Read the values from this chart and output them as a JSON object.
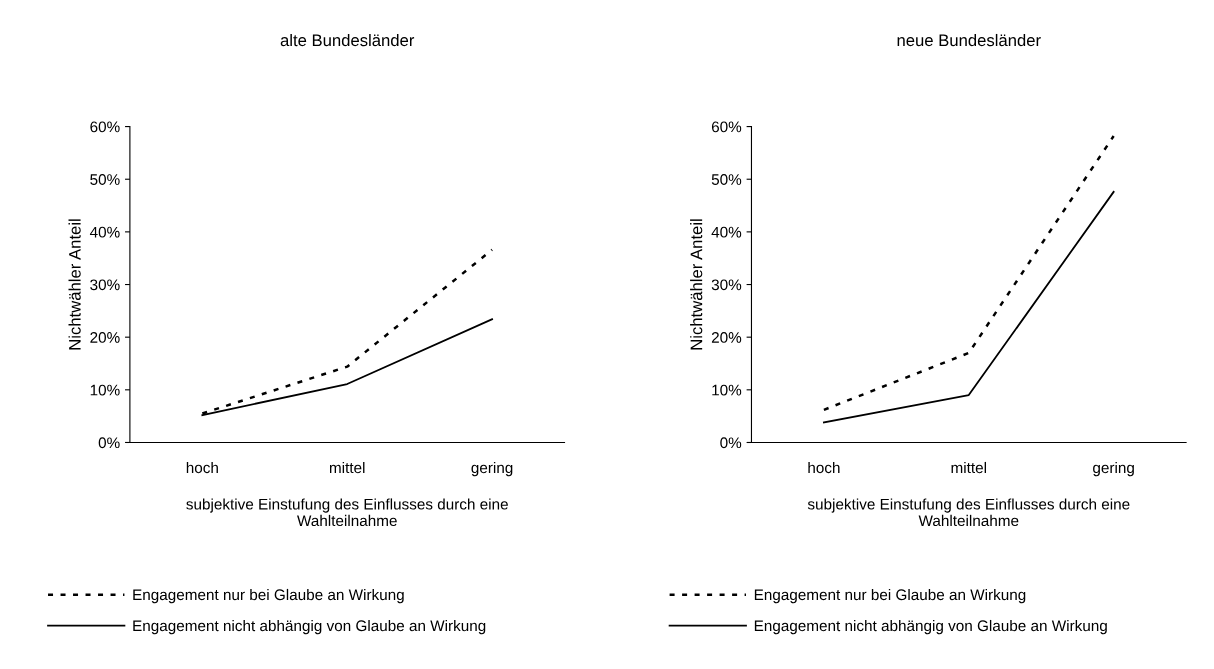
{
  "chart_data": [
    {
      "type": "line",
      "title": "alte Bundesländer",
      "xlabel": "subjektive Einstufung des Einflusses durch eine\nWahlteilnahme",
      "ylabel": "Nichtwähler Anteil",
      "categories": [
        "hoch",
        "mittel",
        "gering"
      ],
      "ylim": [
        0,
        60
      ],
      "yticks": [
        {
          "value": 0,
          "label": "0%"
        },
        {
          "value": 10,
          "label": "10%"
        },
        {
          "value": 20,
          "label": "20%"
        },
        {
          "value": 30,
          "label": "30%"
        },
        {
          "value": 40,
          "label": "40%"
        },
        {
          "value": 50,
          "label": "50%"
        },
        {
          "value": 60,
          "label": "60%"
        }
      ],
      "legend": "bottom",
      "grid": false,
      "marker": "none",
      "series": [
        {
          "name": "Engagement nur bei Glaube an Wirkung",
          "color": "#000000",
          "line_style": "dotted",
          "values": [
            5.5,
            14.4,
            36.6
          ]
        },
        {
          "name": "Engagement nicht abhängig von Glaube an Wirkung",
          "color": "#000000",
          "line_style": "solid",
          "values": [
            5.2,
            11.1,
            23.4
          ]
        }
      ]
    },
    {
      "type": "line",
      "title": "neue Bundesländer",
      "xlabel": "subjektive Einstufung des Einflusses durch eine\nWahlteilnahme",
      "ylabel": "Nichtwähler Anteil",
      "categories": [
        "hoch",
        "mittel",
        "gering"
      ],
      "ylim": [
        0,
        60
      ],
      "yticks": [
        {
          "value": 0,
          "label": "0%"
        },
        {
          "value": 10,
          "label": "10%"
        },
        {
          "value": 20,
          "label": "20%"
        },
        {
          "value": 30,
          "label": "30%"
        },
        {
          "value": 40,
          "label": "40%"
        },
        {
          "value": 50,
          "label": "50%"
        },
        {
          "value": 60,
          "label": "60%"
        }
      ],
      "legend": "bottom",
      "grid": false,
      "marker": "none",
      "series": [
        {
          "name": "Engagement nur bei Glaube an Wirkung",
          "color": "#000000",
          "line_style": "dotted",
          "values": [
            6.2,
            17.0,
            58.2
          ]
        },
        {
          "name": "Engagement nicht abhängig von Glaube an Wirkung",
          "color": "#000000",
          "line_style": "solid",
          "values": [
            3.8,
            9.0,
            47.6
          ]
        }
      ]
    }
  ]
}
